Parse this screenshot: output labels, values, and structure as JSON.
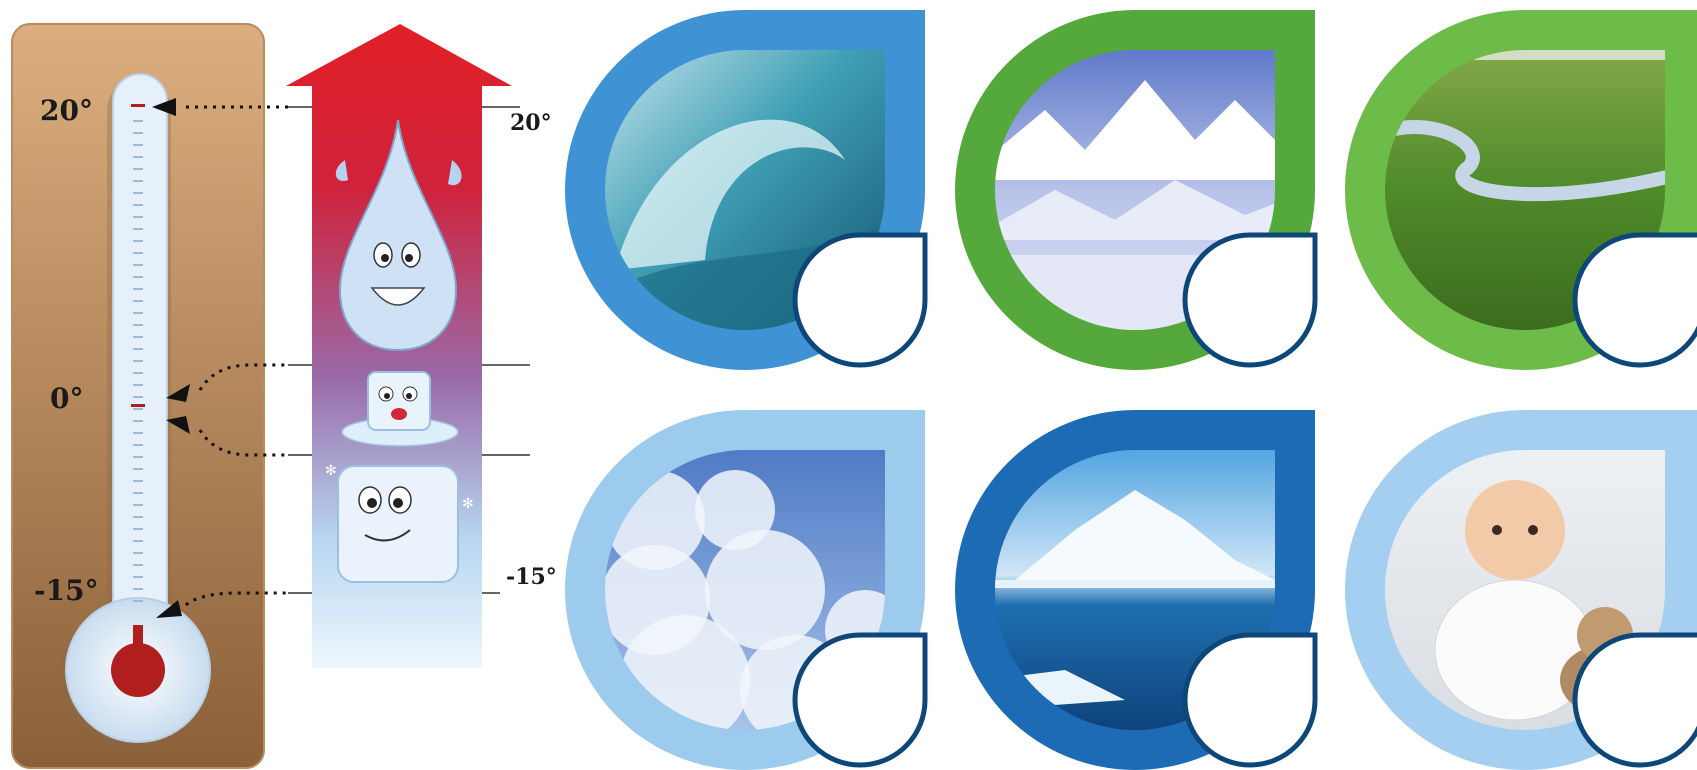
{
  "thermometer": {
    "labels": [
      "20°",
      "0°",
      "-15°"
    ],
    "colors": {
      "panel": "#c89868",
      "mercury": "#b01e1e",
      "tube": "#e6f0fa"
    }
  },
  "arrow": {
    "labels": [
      "20°",
      "-15°"
    ],
    "colors": {
      "top": "#e11f26",
      "bottom": "#dbeefa"
    },
    "icons": [
      "water-drop-character-icon",
      "melting-ice-cube-character-icon",
      "ice-cube-character-icon"
    ]
  },
  "cards": [
    {
      "id": "ocean-wave",
      "ring": "#3f93d4",
      "scene": "ocean-wave"
    },
    {
      "id": "snowy-mountains",
      "ring": "#54a83c",
      "scene": "snowy-mountains"
    },
    {
      "id": "river-landscape",
      "ring": "#6dbb48",
      "scene": "river-landscape"
    },
    {
      "id": "clouds",
      "ring": "#9ccbee",
      "scene": "clouds"
    },
    {
      "id": "iceberg",
      "ring": "#1c6bb4",
      "scene": "iceberg"
    },
    {
      "id": "baby-and-kitten",
      "ring": "#a5cff0",
      "scene": "baby-and-kitten"
    }
  ]
}
